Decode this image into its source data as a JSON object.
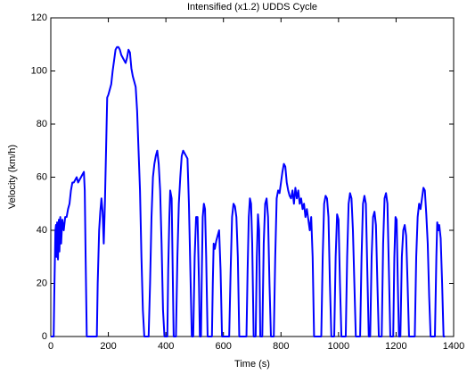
{
  "chart_data": {
    "type": "line",
    "title": "Intensified (x1.2) UDDS Cycle",
    "x_label": "Time (s)",
    "y_label": "Velocity (km/h)",
    "color": "#0000ff",
    "xlim": [
      0,
      1400
    ],
    "xticks": [
      0,
      200,
      400,
      600,
      800,
      1000,
      1200,
      1400
    ],
    "ylim": [
      0,
      120
    ],
    "yticks": [
      0,
      20,
      40,
      60,
      80,
      100,
      120
    ],
    "x": [
      0,
      10,
      12,
      16,
      18,
      20,
      22,
      25,
      28,
      30,
      33,
      36,
      40,
      45,
      50,
      55,
      60,
      65,
      70,
      75,
      80,
      85,
      90,
      95,
      100,
      105,
      110,
      115,
      118,
      121,
      125,
      160,
      163,
      168,
      172,
      176,
      180,
      184,
      188,
      192,
      196,
      200,
      205,
      210,
      215,
      220,
      225,
      230,
      235,
      240,
      245,
      250,
      255,
      260,
      265,
      270,
      275,
      280,
      285,
      290,
      295,
      300,
      305,
      310,
      315,
      320,
      325,
      340,
      345,
      350,
      355,
      360,
      365,
      370,
      375,
      380,
      385,
      390,
      395,
      405,
      408,
      412,
      415,
      420,
      423,
      427,
      435,
      440,
      445,
      450,
      455,
      460,
      465,
      470,
      475,
      480,
      485,
      490,
      495,
      500,
      505,
      510,
      515,
      518,
      522,
      525,
      528,
      532,
      536,
      540,
      545,
      560,
      563,
      566,
      570,
      575,
      580,
      585,
      590,
      595,
      620,
      625,
      630,
      635,
      640,
      645,
      650,
      655,
      680,
      684,
      688,
      692,
      696,
      700,
      705,
      712,
      716,
      720,
      724,
      728,
      735,
      740,
      745,
      750,
      755,
      760,
      765,
      775,
      780,
      785,
      790,
      795,
      800,
      805,
      810,
      815,
      820,
      825,
      830,
      835,
      840,
      845,
      850,
      855,
      860,
      865,
      870,
      875,
      880,
      885,
      890,
      895,
      900,
      905,
      910,
      915,
      940,
      945,
      950,
      955,
      960,
      965,
      970,
      975,
      985,
      990,
      995,
      1000,
      1005,
      1010,
      1025,
      1030,
      1035,
      1040,
      1045,
      1050,
      1055,
      1060,
      1075,
      1080,
      1085,
      1090,
      1095,
      1100,
      1105,
      1110,
      1115,
      1120,
      1125,
      1130,
      1135,
      1140,
      1150,
      1155,
      1160,
      1165,
      1170,
      1175,
      1180,
      1190,
      1194,
      1198,
      1202,
      1206,
      1210,
      1215,
      1220,
      1225,
      1230,
      1235,
      1240,
      1245,
      1265,
      1270,
      1275,
      1280,
      1285,
      1290,
      1295,
      1300,
      1305,
      1310,
      1315,
      1320,
      1335,
      1340,
      1343,
      1347,
      1350,
      1355,
      1360,
      1365,
      1370
    ],
    "values": [
      0,
      0,
      15,
      40,
      42,
      30,
      43,
      29,
      44,
      32,
      45,
      35,
      44,
      40,
      45,
      45,
      48,
      50,
      55,
      58,
      58,
      59,
      60,
      58,
      59,
      60,
      61,
      62,
      55,
      30,
      0,
      0,
      20,
      40,
      47,
      52,
      47,
      35,
      50,
      70,
      90,
      91,
      93,
      95,
      100,
      104,
      108,
      109,
      109,
      108,
      106,
      105,
      104,
      103,
      105,
      108,
      107,
      101,
      98,
      96,
      94,
      85,
      70,
      55,
      30,
      10,
      0,
      0,
      20,
      45,
      60,
      65,
      68,
      70,
      65,
      55,
      35,
      10,
      0,
      0,
      25,
      45,
      55,
      52,
      30,
      0,
      0,
      30,
      50,
      60,
      68,
      70,
      69,
      68,
      67,
      50,
      25,
      0,
      0,
      30,
      45,
      45,
      20,
      0,
      0,
      25,
      45,
      50,
      48,
      30,
      0,
      0,
      20,
      35,
      33,
      36,
      38,
      40,
      25,
      0,
      0,
      25,
      45,
      50,
      49,
      45,
      30,
      0,
      0,
      25,
      45,
      52,
      50,
      35,
      0,
      0,
      30,
      46,
      40,
      0,
      0,
      35,
      50,
      52,
      45,
      20,
      0,
      0,
      30,
      52,
      55,
      54,
      58,
      62,
      65,
      64,
      58,
      55,
      53,
      52,
      55,
      50,
      56,
      52,
      55,
      50,
      52,
      48,
      50,
      45,
      48,
      44,
      40,
      45,
      30,
      0,
      0,
      30,
      50,
      53,
      52,
      45,
      20,
      0,
      0,
      30,
      46,
      44,
      20,
      0,
      0,
      30,
      50,
      54,
      52,
      40,
      20,
      0,
      0,
      30,
      50,
      53,
      50,
      25,
      0,
      0,
      30,
      45,
      47,
      42,
      20,
      0,
      0,
      35,
      52,
      54,
      50,
      25,
      0,
      0,
      30,
      45,
      44,
      20,
      0,
      0,
      30,
      40,
      42,
      38,
      20,
      0,
      0,
      30,
      45,
      50,
      48,
      52,
      56,
      55,
      46,
      35,
      15,
      0,
      0,
      30,
      43,
      40,
      42,
      37,
      20,
      0,
      0
    ]
  }
}
